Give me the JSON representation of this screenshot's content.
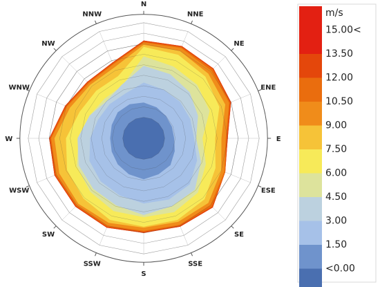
{
  "chart_data": {
    "type": "wind-rose",
    "title": "",
    "unit_label": "m/s",
    "directions": [
      "N",
      "NNE",
      "NE",
      "ENE",
      "E",
      "ESE",
      "SE",
      "SSE",
      "S",
      "SSW",
      "SW",
      "WSW",
      "W",
      "WNW",
      "NW",
      "NNW"
    ],
    "rings": 11,
    "radius_max": 11,
    "speed_bins": [
      {
        "label": "<0.00",
        "color": "#4a6fb0"
      },
      {
        "label": "1.50",
        "color": "#6f93cc"
      },
      {
        "label": "3.00",
        "color": "#a6c1e8"
      },
      {
        "label": "4.50",
        "color": "#bcd1df"
      },
      {
        "label": "6.00",
        "color": "#dde39c"
      },
      {
        "label": "7.50",
        "color": "#f7ea59"
      },
      {
        "label": "9.00",
        "color": "#f6c338"
      },
      {
        "label": "10.50",
        "color": "#f08c1a"
      },
      {
        "label": "12.00",
        "color": "#ea6d0e"
      },
      {
        "label": "13.50",
        "color": "#e4470b"
      },
      {
        "label": "15.00<",
        "color": "#e32012"
      }
    ],
    "series_note": "cumulative radius per direction for each bin, innermost first",
    "series": [
      {
        "bin": "<0.00",
        "values": [
          2.0,
          2.0,
          2.0,
          2.0,
          2.0,
          2.0,
          2.0,
          2.0,
          2.0,
          2.0,
          2.0,
          2.0,
          2.0,
          2.0,
          2.0,
          2.0
        ]
      },
      {
        "bin": "1.50",
        "values": [
          3.4,
          3.2,
          3.0,
          2.9,
          2.9,
          3.2,
          3.6,
          3.7,
          3.9,
          3.7,
          3.5,
          3.3,
          3.2,
          3.3,
          3.5,
          3.5
        ]
      },
      {
        "bin": "3.00",
        "values": [
          5.3,
          5.0,
          4.9,
          4.8,
          4.8,
          5.5,
          6.2,
          6.3,
          6.2,
          5.9,
          5.8,
          5.6,
          5.1,
          4.7,
          4.6,
          4.6
        ]
      },
      {
        "bin": "4.50",
        "values": [
          6.9,
          6.6,
          6.2,
          5.6,
          5.0,
          5.9,
          6.9,
          7.0,
          7.3,
          6.9,
          6.8,
          6.7,
          6.3,
          5.6,
          5.0,
          5.5
        ]
      },
      {
        "bin": "6.00",
        "values": [
          7.8,
          7.4,
          7.2,
          6.8,
          5.6,
          6.4,
          7.3,
          7.6,
          7.5,
          7.5,
          7.2,
          6.9,
          6.2,
          5.6,
          5.3,
          5.4
        ]
      },
      {
        "bin": "7.50",
        "values": [
          8.7,
          8.6,
          8.3,
          7.8,
          6.8,
          7.4,
          8.2,
          8.4,
          8.4,
          8.4,
          8.1,
          7.9,
          7.4,
          6.6,
          6.4,
          6.4
        ]
      },
      {
        "bin": "9.00",
        "values": [
          8.9,
          9.0,
          8.7,
          8.4,
          7.4,
          8.0,
          8.7,
          8.6,
          8.5,
          8.7,
          8.8,
          8.7,
          8.5,
          7.6,
          7.2,
          7.3
        ]
      },
      {
        "bin": "10.50",
        "values": [
          9.1,
          9.3,
          9.1,
          8.8,
          7.8,
          8.3,
          9.0,
          8.9,
          8.8,
          9.0,
          9.0,
          9.0,
          8.8,
          7.9,
          7.4,
          7.6
        ]
      },
      {
        "bin": "12.00",
        "values": [
          9.2,
          9.4,
          9.3,
          8.9,
          7.9,
          8.4,
          9.2,
          9.0,
          8.9,
          9.1,
          9.1,
          9.1,
          8.9,
          8.0,
          7.5,
          7.7
        ]
      },
      {
        "bin": "13.50",
        "values": [
          9.3,
          9.5,
          9.4,
          9.0,
          8.0,
          8.4,
          9.3,
          9.1,
          9.0,
          9.2,
          9.2,
          9.2,
          9.0,
          8.1,
          7.6,
          7.8
        ]
      },
      {
        "bin": "15.00<",
        "values": [
          9.3,
          9.5,
          9.4,
          9.0,
          8.0,
          8.4,
          9.3,
          9.1,
          9.0,
          9.2,
          9.2,
          9.2,
          9.0,
          8.1,
          7.6,
          7.8
        ]
      }
    ],
    "grid": true,
    "legend_position": "right"
  }
}
